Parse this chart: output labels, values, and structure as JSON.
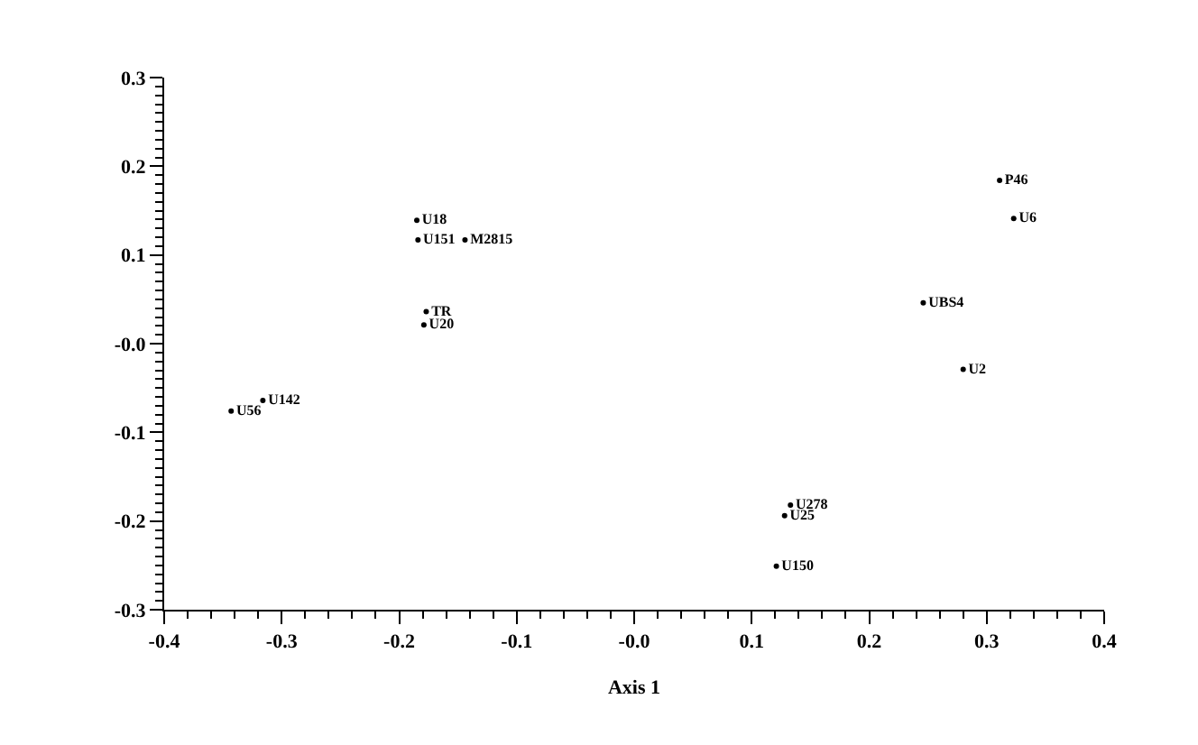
{
  "chart_data": {
    "type": "scatter",
    "xlabel": "Axis 1",
    "marker": "circle",
    "legend": false,
    "xlim": [
      -0.4,
      0.4
    ],
    "ylim": [
      -0.3,
      0.3
    ],
    "xticks": [
      -0.4,
      -0.3,
      -0.2,
      -0.1,
      {
        "value": 0,
        "label": "-0.0"
      },
      0.1,
      0.2,
      0.3,
      0.4,
      {
        "value": -0.38,
        "label": null
      },
      {
        "value": -0.36,
        "label": null
      },
      {
        "value": -0.34,
        "label": null
      },
      {
        "value": -0.32,
        "label": null
      },
      {
        "value": -0.28,
        "label": null
      },
      {
        "value": -0.26,
        "label": null
      },
      {
        "value": -0.24,
        "label": null
      },
      {
        "value": -0.22,
        "label": null
      },
      {
        "value": -0.18,
        "label": null
      },
      {
        "value": -0.16,
        "label": null
      },
      {
        "value": -0.14,
        "label": null
      },
      {
        "value": -0.12,
        "label": null
      },
      {
        "value": -0.08,
        "label": null
      },
      {
        "value": -0.06,
        "label": null
      },
      {
        "value": -0.04,
        "label": null
      },
      {
        "value": -0.02,
        "label": null
      },
      {
        "value": 0.02,
        "label": null
      },
      {
        "value": 0.04,
        "label": null
      },
      {
        "value": 0.06,
        "label": null
      },
      {
        "value": 0.08,
        "label": null
      },
      {
        "value": 0.12,
        "label": null
      },
      {
        "value": 0.14,
        "label": null
      },
      {
        "value": 0.16,
        "label": null
      },
      {
        "value": 0.18,
        "label": null
      },
      {
        "value": 0.22,
        "label": null
      },
      {
        "value": 0.24,
        "label": null
      },
      {
        "value": 0.26,
        "label": null
      },
      {
        "value": 0.28,
        "label": null
      },
      {
        "value": 0.32,
        "label": null
      },
      {
        "value": 0.34,
        "label": null
      },
      {
        "value": 0.36,
        "label": null
      },
      {
        "value": 0.38,
        "label": null
      }
    ],
    "yticks": [
      -0.3,
      -0.2,
      -0.1,
      {
        "value": 0,
        "label": "-0.0"
      },
      0.1,
      0.2,
      0.3,
      {
        "value": -0.29,
        "label": null
      },
      {
        "value": -0.28,
        "label": null
      },
      {
        "value": -0.27,
        "label": null
      },
      {
        "value": -0.26,
        "label": null
      },
      {
        "value": -0.25,
        "label": null
      },
      {
        "value": -0.24,
        "label": null
      },
      {
        "value": -0.23,
        "label": null
      },
      {
        "value": -0.22,
        "label": null
      },
      {
        "value": -0.21,
        "label": null
      },
      {
        "value": -0.19,
        "label": null
      },
      {
        "value": -0.18,
        "label": null
      },
      {
        "value": -0.17,
        "label": null
      },
      {
        "value": -0.16,
        "label": null
      },
      {
        "value": -0.15,
        "label": null
      },
      {
        "value": -0.14,
        "label": null
      },
      {
        "value": -0.13,
        "label": null
      },
      {
        "value": -0.12,
        "label": null
      },
      {
        "value": -0.11,
        "label": null
      },
      {
        "value": -0.09,
        "label": null
      },
      {
        "value": -0.08,
        "label": null
      },
      {
        "value": -0.07,
        "label": null
      },
      {
        "value": -0.06,
        "label": null
      },
      {
        "value": -0.05,
        "label": null
      },
      {
        "value": -0.04,
        "label": null
      },
      {
        "value": -0.03,
        "label": null
      },
      {
        "value": -0.02,
        "label": null
      },
      {
        "value": -0.01,
        "label": null
      },
      {
        "value": 0.01,
        "label": null
      },
      {
        "value": 0.02,
        "label": null
      },
      {
        "value": 0.03,
        "label": null
      },
      {
        "value": 0.04,
        "label": null
      },
      {
        "value": 0.05,
        "label": null
      },
      {
        "value": 0.06,
        "label": null
      },
      {
        "value": 0.07,
        "label": null
      },
      {
        "value": 0.08,
        "label": null
      },
      {
        "value": 0.09,
        "label": null
      },
      {
        "value": 0.11,
        "label": null
      },
      {
        "value": 0.12,
        "label": null
      },
      {
        "value": 0.13,
        "label": null
      },
      {
        "value": 0.14,
        "label": null
      },
      {
        "value": 0.15,
        "label": null
      },
      {
        "value": 0.16,
        "label": null
      },
      {
        "value": 0.17,
        "label": null
      },
      {
        "value": 0.18,
        "label": null
      },
      {
        "value": 0.19,
        "label": null
      },
      {
        "value": 0.21,
        "label": null
      },
      {
        "value": 0.22,
        "label": null
      },
      {
        "value": 0.23,
        "label": null
      },
      {
        "value": 0.24,
        "label": null
      },
      {
        "value": 0.25,
        "label": null
      },
      {
        "value": 0.26,
        "label": null
      },
      {
        "value": 0.27,
        "label": null
      },
      {
        "value": 0.28,
        "label": null
      },
      {
        "value": 0.29,
        "label": null
      }
    ],
    "series": [
      {
        "name": "U18",
        "color": "#000000",
        "x": [
          -0.185
        ],
        "values": [
          0.139
        ]
      },
      {
        "name": "U151",
        "color": "#000000",
        "x": [
          -0.184
        ],
        "values": [
          0.117
        ]
      },
      {
        "name": "M2815",
        "color": "#000000",
        "x": [
          -0.144
        ],
        "values": [
          0.117
        ]
      },
      {
        "name": "TR",
        "color": "#000000",
        "x": [
          -0.177
        ],
        "values": [
          0.036
        ]
      },
      {
        "name": "U20",
        "color": "#000000",
        "x": [
          -0.179
        ],
        "values": [
          0.021
        ]
      },
      {
        "name": "U142",
        "color": "#000000",
        "x": [
          -0.316
        ],
        "values": [
          -0.064
        ]
      },
      {
        "name": "U56",
        "color": "#000000",
        "x": [
          -0.343
        ],
        "values": [
          -0.076
        ]
      },
      {
        "name": "P46",
        "color": "#000000",
        "x": [
          0.311
        ],
        "values": [
          0.184
        ]
      },
      {
        "name": "U6",
        "color": "#000000",
        "x": [
          0.323
        ],
        "values": [
          0.141
        ]
      },
      {
        "name": "UBS4",
        "color": "#000000",
        "x": [
          0.246
        ],
        "values": [
          0.046
        ]
      },
      {
        "name": "U2",
        "color": "#000000",
        "x": [
          0.28
        ],
        "values": [
          -0.029
        ]
      },
      {
        "name": "U278",
        "color": "#000000",
        "x": [
          0.133
        ],
        "values": [
          -0.182
        ]
      },
      {
        "name": "U25",
        "color": "#000000",
        "x": [
          0.128
        ],
        "values": [
          -0.194
        ]
      },
      {
        "name": "U150",
        "color": "#000000",
        "x": [
          0.121
        ],
        "values": [
          -0.251
        ]
      }
    ]
  }
}
